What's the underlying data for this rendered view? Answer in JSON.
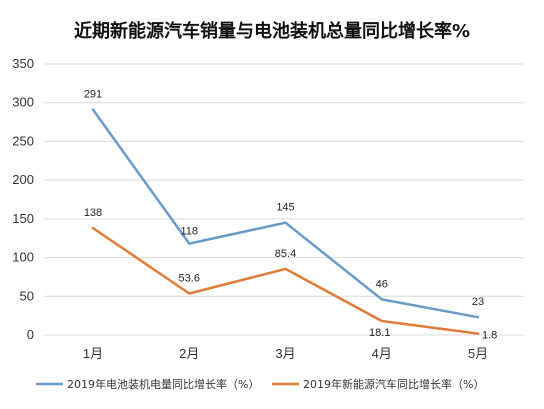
{
  "chart_data": {
    "type": "line",
    "title": "近期新能源汽车销量与电池装机总量同比增长率%",
    "categories": [
      "1月",
      "2月",
      "3月",
      "4月",
      "5月"
    ],
    "ylim": [
      0,
      350
    ],
    "yticks": [
      0,
      50,
      100,
      150,
      200,
      250,
      300,
      350
    ],
    "grid": true,
    "legend_position": "bottom",
    "series": [
      {
        "name": "2019年电池装机电量同比增长率（%）",
        "color": "#6a9ac8",
        "values": [
          291,
          118,
          145,
          46,
          23
        ],
        "data_labels": [
          "291",
          "118",
          "145",
          "46",
          "23"
        ]
      },
      {
        "name": "2019年新能源汽车同比增长率（%）",
        "color": "#e07b39",
        "values": [
          138,
          53.6,
          85.4,
          18.1,
          1.8
        ],
        "data_labels": [
          "138",
          "53.6",
          "85.4",
          "18.1",
          "1.8"
        ]
      }
    ]
  }
}
